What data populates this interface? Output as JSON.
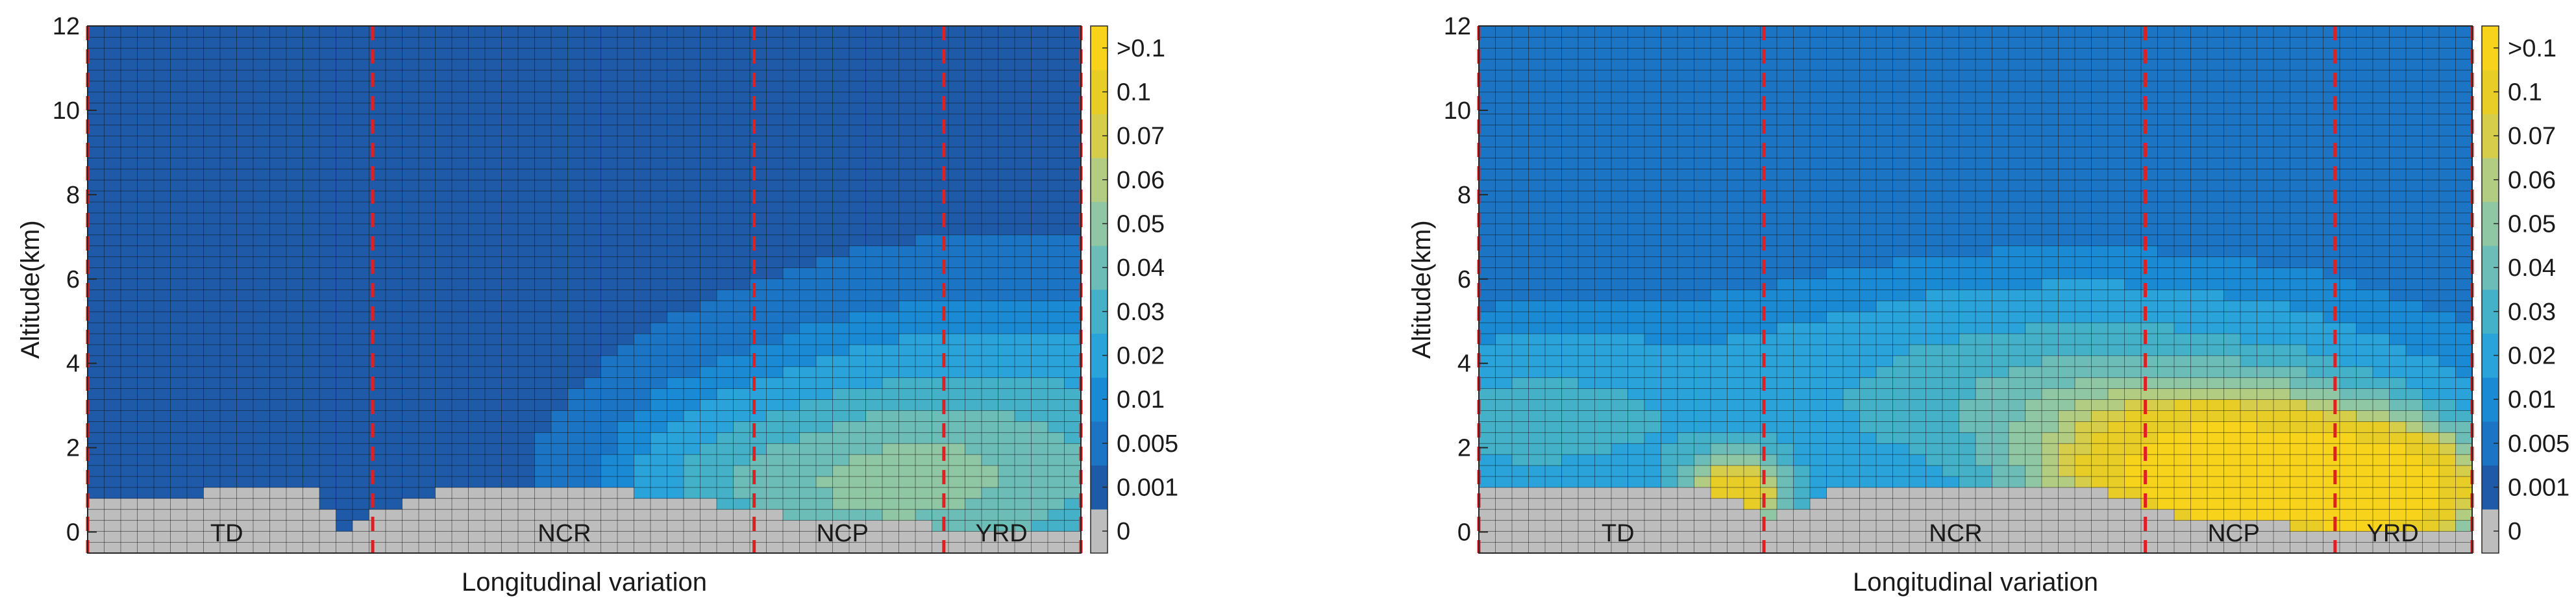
{
  "chart_data": [
    {
      "type": "heatmap",
      "title": "",
      "xlabel": "Longitudinal variation",
      "ylabel": "Altitude(km)",
      "ylim": [
        -0.5,
        12
      ],
      "yticks": [
        "0",
        "2",
        "4",
        "6",
        "8",
        "10",
        "12"
      ],
      "region_dividers": [
        0.287,
        0.671,
        0.862
      ],
      "regions": [
        {
          "label": "TD",
          "position": 0.14
        },
        {
          "label": "NCR",
          "position": 0.48
        },
        {
          "label": "NCP",
          "position": 0.76
        },
        {
          "label": "YRD",
          "position": 0.92
        }
      ],
      "terrain_profile": [
        {
          "x": 0.0,
          "top_km": 0.8
        },
        {
          "x": 0.06,
          "top_km": 0.9
        },
        {
          "x": 0.23,
          "top_km": 1.0
        },
        {
          "x": 0.25,
          "top_km": 0.0
        },
        {
          "x": 0.35,
          "top_km": 1.0
        },
        {
          "x": 0.52,
          "top_km": 1.0
        },
        {
          "x": 0.62,
          "top_km": 0.7
        },
        {
          "x": 0.7,
          "top_km": 0.4
        },
        {
          "x": 0.85,
          "top_km": 0.15
        },
        {
          "x": 1.0,
          "top_km": 0.15
        }
      ],
      "field_sources": [
        {
          "x": 0.93,
          "z": 1.5,
          "amp": 0.032,
          "sx": 0.22,
          "sz": 3.0
        },
        {
          "x": 0.75,
          "z": 1.0,
          "amp": 0.024,
          "sx": 0.16,
          "sz": 2.2
        },
        {
          "x": 0.63,
          "z": 1.2,
          "amp": 0.008,
          "sx": 0.08,
          "sz": 1.6
        },
        {
          "x": 0.2,
          "z": 2.0,
          "amp": 0.0004,
          "sx": 0.25,
          "sz": 1.0
        }
      ],
      "background_level": 0.0,
      "colorbar": {
        "levels": [
          "0",
          "0.001",
          "0.005",
          "0.01",
          "0.02",
          "0.03",
          "0.04",
          "0.05",
          "0.06",
          "0.07",
          "0.1",
          ">0.1"
        ],
        "thresholds": [
          0,
          0.001,
          0.005,
          0.01,
          0.02,
          0.03,
          0.04,
          0.05,
          0.06,
          0.07,
          0.1
        ],
        "colors": [
          "#bdbdbd",
          "#1e5aa8",
          "#1b74c4",
          "#1a8ad4",
          "#2aa3db",
          "#45b1c8",
          "#6cbcb8",
          "#8fc6a4",
          "#b2cd82",
          "#d6ce4a",
          "#e8cd27",
          "#f7d31c"
        ]
      }
    },
    {
      "type": "heatmap",
      "title": "",
      "xlabel": "Longitudinal variation",
      "ylabel": "Altitude(km)",
      "ylim": [
        -0.5,
        12
      ],
      "yticks": [
        "0",
        "2",
        "4",
        "6",
        "8",
        "10",
        "12"
      ],
      "region_dividers": [
        0.287,
        0.671,
        0.862
      ],
      "regions": [
        {
          "label": "TD",
          "position": 0.14
        },
        {
          "label": "NCR",
          "position": 0.48
        },
        {
          "label": "NCP",
          "position": 0.76
        },
        {
          "label": "YRD",
          "position": 0.92
        }
      ],
      "terrain_profile": [
        {
          "x": 0.0,
          "top_km": 1.0
        },
        {
          "x": 0.23,
          "top_km": 1.0
        },
        {
          "x": 0.3,
          "top_km": 0.3
        },
        {
          "x": 0.35,
          "top_km": 1.0
        },
        {
          "x": 0.62,
          "top_km": 1.0
        },
        {
          "x": 0.7,
          "top_km": 0.4
        },
        {
          "x": 0.85,
          "top_km": 0.1
        },
        {
          "x": 1.0,
          "top_km": 0.0
        }
      ],
      "field_sources": [
        {
          "x": 0.76,
          "z": 1.3,
          "amp": 0.13,
          "sx": 0.16,
          "sz": 1.7
        },
        {
          "x": 0.92,
          "z": 1.0,
          "amp": 0.1,
          "sx": 0.09,
          "sz": 1.3
        },
        {
          "x": 0.26,
          "z": 0.9,
          "amp": 0.08,
          "sx": 0.05,
          "sz": 0.9
        },
        {
          "x": 0.05,
          "z": 2.6,
          "amp": 0.022,
          "sx": 0.2,
          "sz": 2.0
        },
        {
          "x": 0.6,
          "z": 3.2,
          "amp": 0.03,
          "sx": 0.3,
          "sz": 2.4
        }
      ],
      "background_level": 0.0015,
      "colorbar": {
        "levels": [
          "0",
          "0.001",
          "0.005",
          "0.01",
          "0.02",
          "0.03",
          "0.04",
          "0.05",
          "0.06",
          "0.07",
          "0.1",
          ">0.1"
        ],
        "thresholds": [
          0,
          0.001,
          0.005,
          0.01,
          0.02,
          0.03,
          0.04,
          0.05,
          0.06,
          0.07,
          0.1
        ],
        "colors": [
          "#bdbdbd",
          "#1e5aa8",
          "#1b74c4",
          "#1a8ad4",
          "#2aa3db",
          "#45b1c8",
          "#6cbcb8",
          "#8fc6a4",
          "#b2cd82",
          "#d6ce4a",
          "#e8cd27",
          "#f7d31c"
        ]
      }
    }
  ]
}
